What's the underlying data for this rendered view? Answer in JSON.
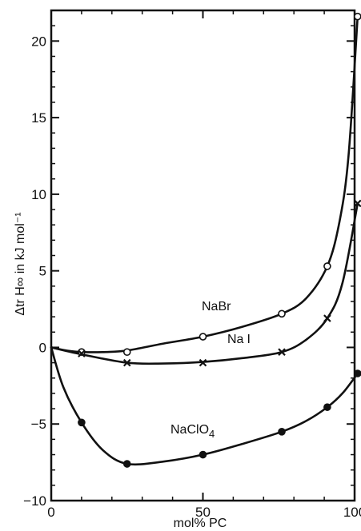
{
  "chart_data": {
    "type": "line",
    "xlabel": "mol% PC",
    "ylabel": "Δtr H∞ in kJ mol⁻¹",
    "xlim": [
      0,
      100
    ],
    "ylim": [
      -10,
      22
    ],
    "x_ticks": [
      0,
      50,
      100
    ],
    "y_ticks": [
      -10,
      -5,
      0,
      5,
      10,
      15,
      20
    ],
    "grid": false,
    "legend": "none",
    "series": [
      {
        "name": "NaBr",
        "label_pieces": [
          "NaBr"
        ],
        "marker": "open-circle",
        "points": [
          {
            "x": 0,
            "y": 0
          },
          {
            "x": 10,
            "y": -0.3
          },
          {
            "x": 25,
            "y": -0.3
          },
          {
            "x": 50,
            "y": 0.7
          },
          {
            "x": 76,
            "y": 2.2
          },
          {
            "x": 91,
            "y": 5.3
          },
          {
            "x": 101,
            "y": 21.6
          }
        ],
        "curve": [
          [
            0,
            0
          ],
          [
            5,
            -0.2
          ],
          [
            10,
            -0.3
          ],
          [
            18,
            -0.3
          ],
          [
            25,
            -0.2
          ],
          [
            37,
            0.25
          ],
          [
            50,
            0.7
          ],
          [
            63,
            1.35
          ],
          [
            76,
            2.2
          ],
          [
            84,
            3.2
          ],
          [
            91,
            5.3
          ],
          [
            95,
            8.2
          ],
          [
            98,
            12.5
          ],
          [
            101,
            21.6
          ]
        ]
      },
      {
        "name": "NaI",
        "label_pieces": [
          "Na",
          "I"
        ],
        "marker": "cross",
        "points": [
          {
            "x": 0,
            "y": 0
          },
          {
            "x": 10,
            "y": -0.4
          },
          {
            "x": 25,
            "y": -1.0
          },
          {
            "x": 50,
            "y": -1.0
          },
          {
            "x": 76,
            "y": -0.3
          },
          {
            "x": 91,
            "y": 1.9
          },
          {
            "x": 101,
            "y": 9.4
          }
        ],
        "curve": [
          [
            0,
            0
          ],
          [
            10,
            -0.45
          ],
          [
            25,
            -1.0
          ],
          [
            37,
            -1.05
          ],
          [
            50,
            -0.95
          ],
          [
            63,
            -0.7
          ],
          [
            76,
            -0.3
          ],
          [
            84,
            0.5
          ],
          [
            91,
            1.9
          ],
          [
            96,
            4.2
          ],
          [
            101,
            9.4
          ]
        ]
      },
      {
        "name": "NaClO4",
        "label_pieces": [
          "NaClO",
          "4"
        ],
        "marker": "filled-circle",
        "points": [
          {
            "x": 0,
            "y": 0
          },
          {
            "x": 10,
            "y": -4.9
          },
          {
            "x": 25,
            "y": -7.6
          },
          {
            "x": 50,
            "y": -7.0
          },
          {
            "x": 76,
            "y": -5.5
          },
          {
            "x": 91,
            "y": -3.9
          },
          {
            "x": 101,
            "y": -1.7
          }
        ],
        "curve": [
          [
            0,
            0
          ],
          [
            4,
            -2.6
          ],
          [
            10,
            -4.9
          ],
          [
            17,
            -6.7
          ],
          [
            25,
            -7.6
          ],
          [
            37,
            -7.45
          ],
          [
            50,
            -7.0
          ],
          [
            63,
            -6.3
          ],
          [
            76,
            -5.5
          ],
          [
            84,
            -4.8
          ],
          [
            91,
            -3.9
          ],
          [
            96,
            -3.0
          ],
          [
            101,
            -1.7
          ]
        ]
      }
    ]
  }
}
